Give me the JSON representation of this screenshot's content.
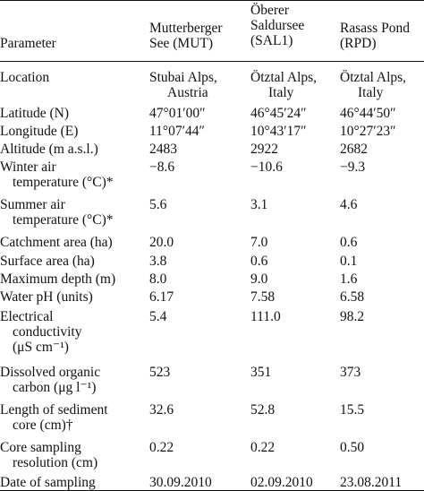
{
  "header": {
    "parameter": "Parameter",
    "mut": [
      "Mutterberger",
      "See (MUT)"
    ],
    "sal": [
      "Öberer",
      "Saldursee",
      "(SAL1)"
    ],
    "rpd": [
      "Rasass Pond",
      "(RPD)"
    ]
  },
  "rows": [
    {
      "label": [
        "Location"
      ],
      "mut": [
        "Stubai Alps,",
        "Austria"
      ],
      "sal": [
        "Ötztal Alps,",
        "Italy"
      ],
      "rpd": [
        "Ötztal Alps,",
        "Italy"
      ]
    },
    {
      "label": [
        "Latitude (N)"
      ],
      "mut": [
        "47°01′00″"
      ],
      "sal": [
        "46°45′24″"
      ],
      "rpd": [
        "46°44′50″"
      ]
    },
    {
      "label": [
        "Longitude (E)"
      ],
      "mut": [
        "11°07′44″"
      ],
      "sal": [
        "10°43′17″"
      ],
      "rpd": [
        "10°27′23″"
      ]
    },
    {
      "label": [
        "Altitude (m a.s.l.)"
      ],
      "mut": [
        "2483"
      ],
      "sal": [
        "2922"
      ],
      "rpd": [
        "2682"
      ]
    },
    {
      "label": [
        "Winter air",
        "temperature (°C)*"
      ],
      "mut": [
        "−8.6"
      ],
      "sal": [
        "−10.6"
      ],
      "rpd": [
        "−9.3"
      ]
    },
    {
      "label": [
        "Summer air",
        "temperature (°C)*"
      ],
      "mut": [
        "5.6"
      ],
      "sal": [
        "3.1"
      ],
      "rpd": [
        "4.6"
      ]
    },
    {
      "label": [
        "Catchment area (ha)"
      ],
      "mut": [
        "20.0"
      ],
      "sal": [
        "7.0"
      ],
      "rpd": [
        "0.6"
      ]
    },
    {
      "label": [
        "Surface area (ha)"
      ],
      "mut": [
        "3.8"
      ],
      "sal": [
        "0.6"
      ],
      "rpd": [
        "0.1"
      ]
    },
    {
      "label": [
        "Maximum depth (m)"
      ],
      "mut": [
        "8.0"
      ],
      "sal": [
        "9.0"
      ],
      "rpd": [
        "1.6"
      ]
    },
    {
      "label": [
        "Water pH (units)"
      ],
      "mut": [
        "6.17"
      ],
      "sal": [
        "7.58"
      ],
      "rpd": [
        "6.58"
      ]
    },
    {
      "label": [
        "Electrical",
        "conductivity",
        "(μS cm⁻¹)"
      ],
      "mut": [
        "5.4"
      ],
      "sal": [
        "111.0"
      ],
      "rpd": [
        "98.2"
      ]
    },
    {
      "label": [
        "Dissolved organic",
        "carbon (μg l⁻¹)"
      ],
      "mut": [
        "523"
      ],
      "sal": [
        "351"
      ],
      "rpd": [
        "373"
      ]
    },
    {
      "label": [
        "Length of sediment",
        "core (cm)†"
      ],
      "mut": [
        "32.6"
      ],
      "sal": [
        "52.8"
      ],
      "rpd": [
        "15.5"
      ]
    },
    {
      "label": [
        "Core sampling",
        "resolution (cm)"
      ],
      "mut": [
        "0.22"
      ],
      "sal": [
        "0.22"
      ],
      "rpd": [
        "0.50"
      ]
    },
    {
      "label": [
        "Date of sampling"
      ],
      "mut": [
        "30.09.2010"
      ],
      "sal": [
        "02.09.2010"
      ],
      "rpd": [
        "23.08.2011"
      ]
    }
  ]
}
